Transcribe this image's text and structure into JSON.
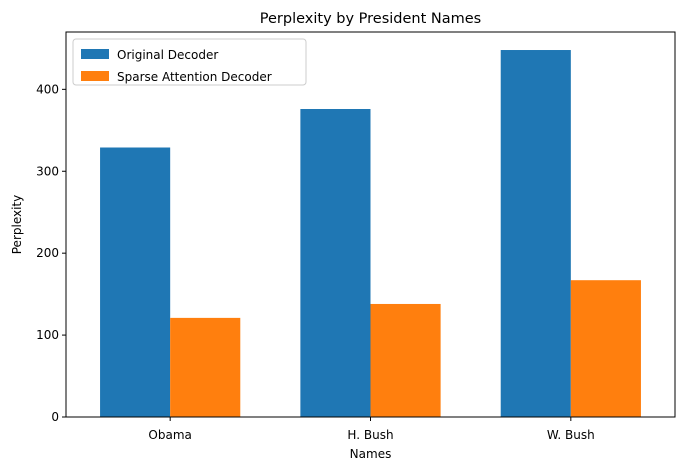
{
  "chart_data": {
    "type": "bar",
    "title": "Perplexity by President Names",
    "xlabel": "Names",
    "ylabel": "Perplexity",
    "categories": [
      "Obama",
      "H. Bush",
      "W. Bush"
    ],
    "series": [
      {
        "name": "Original Decoder",
        "color": "#1f77b4",
        "values": [
          329,
          376,
          448
        ]
      },
      {
        "name": "Sparse Attention Decoder",
        "color": "#ff7f0e",
        "values": [
          121,
          138,
          167
        ]
      }
    ],
    "ylim": [
      0,
      470
    ],
    "yticks": [
      0,
      100,
      200,
      300,
      400
    ],
    "grid": false,
    "legend_position": "top-left"
  }
}
